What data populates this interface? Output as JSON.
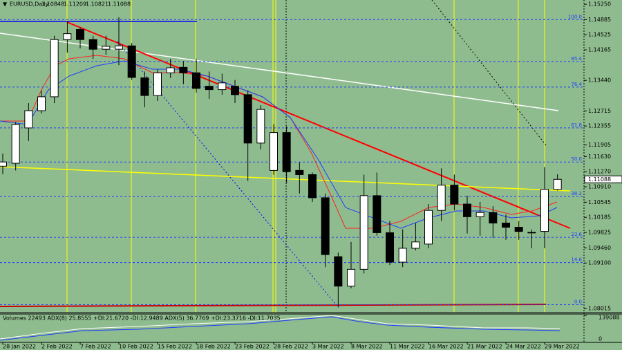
{
  "chart_data": {
    "type": "candlestick",
    "symbol": "EURUSD,Daily",
    "categories": [
      "28 Jan 2022",
      null,
      null,
      "2 Feb 2022",
      null,
      null,
      "7 Feb 2022",
      null,
      null,
      "10 Feb 2022",
      null,
      null,
      "15 Feb 2022",
      null,
      null,
      "18 Feb 2022",
      null,
      null,
      "23 Feb 2022",
      null,
      null,
      "28 Feb 2022",
      null,
      null,
      "3 Mar 2022",
      null,
      null,
      "8 Mar 2022",
      null,
      null,
      "11 Mar 2022",
      null,
      null,
      "16 Mar 2022",
      null,
      null,
      "21 Mar 2022",
      null,
      null,
      "24 Mar 2022",
      null,
      null,
      "29 Mar 2022",
      null
    ],
    "open": [
      1.114,
      1.1147,
      1.1231,
      1.1272,
      1.1305,
      1.1441,
      1.1465,
      1.1441,
      1.1418,
      1.1418,
      1.1426,
      1.135,
      1.1308,
      1.1362,
      1.1375,
      1.1362,
      1.133,
      1.1322,
      1.133,
      1.131,
      1.1195,
      1.113,
      1.122,
      1.113,
      1.112,
      1.1065,
      1.0925,
      1.0855,
      1.0895,
      1.107,
      1.0982,
      1.0912,
      1.0945,
      1.0955,
      1.1035,
      1.1095,
      1.105,
      1.102,
      1.103,
      1.1005,
      1.0995,
      1.0983,
      1.0985,
      1.10848
    ],
    "high": [
      1.117,
      1.1245,
      1.129,
      1.132,
      1.145,
      1.1483,
      1.147,
      1.145,
      1.145,
      1.1494,
      1.1433,
      1.1365,
      1.137,
      1.1395,
      1.139,
      1.1395,
      1.1365,
      1.136,
      1.1345,
      1.132,
      1.1285,
      1.124,
      1.1235,
      1.115,
      1.1125,
      1.1075,
      1.0935,
      1.096,
      1.112,
      1.1125,
      1.101,
      1.099,
      1.1005,
      1.105,
      1.1135,
      1.112,
      1.107,
      1.1055,
      1.1045,
      1.1025,
      1.101,
      1.099,
      1.1138,
      1.11209
    ],
    "low": [
      1.1121,
      1.113,
      1.12,
      1.1265,
      1.129,
      1.141,
      1.142,
      1.1395,
      1.1405,
      1.138,
      1.1345,
      1.128,
      1.1295,
      1.135,
      1.1335,
      1.1315,
      1.13,
      1.131,
      1.129,
      1.1105,
      1.118,
      1.112,
      1.11,
      1.1075,
      1.1055,
      1.09,
      1.0805,
      1.085,
      1.0885,
      1.0975,
      1.0905,
      1.09,
      1.094,
      1.0945,
      1.101,
      1.1035,
      1.098,
      1.0975,
      1.097,
      1.0965,
      1.0965,
      1.0945,
      1.0945,
      1.10821
    ],
    "close": [
      1.115,
      1.1239,
      1.1272,
      1.1305,
      1.1441,
      1.1455,
      1.1441,
      1.1418,
      1.1425,
      1.1426,
      1.1351,
      1.1308,
      1.1362,
      1.1374,
      1.1362,
      1.1325,
      1.1322,
      1.1338,
      1.131,
      1.1195,
      1.1275,
      1.122,
      1.1127,
      1.112,
      1.1065,
      1.093,
      1.0855,
      1.0895,
      1.107,
      1.0982,
      1.0912,
      1.0945,
      1.096,
      1.1035,
      1.1095,
      1.105,
      1.102,
      1.103,
      1.1005,
      1.0995,
      1.0985,
      1.0982,
      1.1085,
      1.11088
    ],
    "ylim": [
      1.0792,
      1.1535
    ],
    "yticks": [
      {
        "value": 1.1525,
        "label": "1.15250"
      },
      {
        "value": 1.14885,
        "label": "1.14885"
      },
      {
        "value": 1.14525,
        "label": "1.14525"
      },
      {
        "value": 1.14165,
        "label": "1.14165"
      },
      {
        "value": 1.1344,
        "label": "1.13440"
      },
      {
        "value": 1.12715,
        "label": "1.12715"
      },
      {
        "value": 1.12355,
        "label": "1.12355"
      },
      {
        "value": 1.11905,
        "label": "1.11905"
      },
      {
        "value": 1.1163,
        "label": "1.11630"
      },
      {
        "value": 1.1127,
        "label": "1.11270"
      },
      {
        "value": 1.1091,
        "label": "1.10910"
      },
      {
        "value": 1.10545,
        "label": "1.10545"
      },
      {
        "value": 1.10185,
        "label": "1.10185"
      },
      {
        "value": 1.09825,
        "label": "1.09825"
      },
      {
        "value": 1.0946,
        "label": "1.09460"
      },
      {
        "value": 1.091,
        "label": "1.09100"
      },
      {
        "value": 1.08015,
        "label": "1.08015"
      }
    ],
    "fibo_levels": [
      {
        "level": "100.0",
        "price": 1.14885
      },
      {
        "level": "85.4",
        "price": 1.1389
      },
      {
        "level": "76.4",
        "price": 1.1328
      },
      {
        "level": "61.8",
        "price": 1.1231
      },
      {
        "level": "50.0",
        "price": 1.115
      },
      {
        "level": "38.2",
        "price": 1.1068
      },
      {
        "level": "23.6",
        "price": 1.0971
      },
      {
        "level": "14.6",
        "price": 1.0911
      },
      {
        "level": "0.0",
        "price": 1.0811
      }
    ],
    "up_color": "#ffffff",
    "down_color": "#000000",
    "indicator_panel": {
      "text": "Volumes 22493  ADX(8) 25.8555 +DI:21.6720 -DI:12.9489  ADX(5) 36.7769 +DI:23.3716 -DI:11.7035",
      "ylim": [
        0,
        139088
      ],
      "yticks": [
        139088,
        0
      ]
    }
  }
}
